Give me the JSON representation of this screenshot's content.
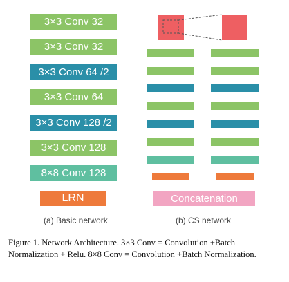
{
  "colors": {
    "green": "#8cc466",
    "teal_dark": "#2a8fa8",
    "teal_light": "#5fbfa0",
    "orange": "#ee7a3b",
    "pink": "#f2a5c2",
    "red": "#ee5f62"
  },
  "basic_network": {
    "blocks": [
      {
        "label": "3×3 Conv 32",
        "color": "green"
      },
      {
        "label": "3×3 Conv 32",
        "color": "green"
      },
      {
        "label": "3×3 Conv 64 /2",
        "color": "teal_dark"
      },
      {
        "label": "3×3 Conv 64",
        "color": "green"
      },
      {
        "label": "3×3 Conv 128 /2",
        "color": "teal_dark"
      },
      {
        "label": "3×3 Conv 128",
        "color": "green"
      },
      {
        "label": "8×8 Conv 128",
        "color": "teal_light"
      },
      {
        "label": "LRN",
        "color": "orange"
      }
    ],
    "sublabel": "(a)  Basic network"
  },
  "cs_network": {
    "bar_colors": [
      "green",
      "green",
      "teal_dark",
      "green",
      "teal_dark",
      "green",
      "teal_light"
    ],
    "concat_label": "Concatenation",
    "sublabel": "(b) CS network"
  },
  "caption": "Figure 1. Network Architecture. 3×3 Conv = Convolution +Batch Normalization + Relu. 8×8 Conv = Convolution +Batch Normalization."
}
